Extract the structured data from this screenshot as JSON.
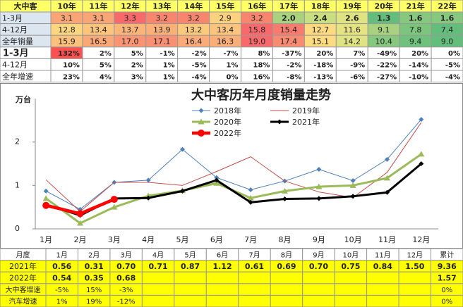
{
  "top_table": {
    "header": [
      "大中客",
      "10年",
      "11年",
      "12年",
      "13年",
      "14年",
      "15年",
      "16年",
      "17年",
      "18年",
      "19年",
      "20年",
      "21年",
      "22年"
    ],
    "rows": [
      {
        "label": "1-3月",
        "cells": [
          "3.1",
          "3.1",
          "3.3",
          "3.2",
          "3.2",
          "2.9",
          "3.2",
          "2.0",
          "2.4",
          "2.6",
          "1.3",
          "1.6",
          "1.6"
        ],
        "colors": [
          "#f9a576",
          "#f9a576",
          "#f8696b",
          "#f8866f",
          "#f8866f",
          "#fcd17f",
          "#f8866f",
          "#a9d27f",
          "#c9dd81",
          "#dfe382",
          "#63be7b",
          "#86c97e",
          "#86c97e"
        ]
      },
      {
        "label": "4-12月",
        "cells": [
          "12.8",
          "13.4",
          "13.7",
          "13.9",
          "13.2",
          "13.4",
          "15.8",
          "15.4",
          "12.7",
          "11.6",
          "9.1",
          "7.8",
          "7.4"
        ],
        "colors": [
          "#fdd780",
          "#fcc47c",
          "#fbb579",
          "#fbb078",
          "#fcca7d",
          "#fcc47c",
          "#f8696b",
          "#f97b6e",
          "#fedb81",
          "#e6e482",
          "#a8d27f",
          "#7bc57d",
          "#63be7b"
        ]
      },
      {
        "label": "全年销量",
        "cells": [
          "15.9",
          "16.5",
          "17.0",
          "17.1",
          "16.4",
          "16.3",
          "19.0",
          "17.4",
          "15.1",
          "14.2",
          "10.4",
          "9.4",
          "9.0"
        ],
        "colors": [
          "#fbc07c",
          "#fba877",
          "#fa9473",
          "#fa9073",
          "#fbab77",
          "#fbaf78",
          "#f8696b",
          "#fa8a72",
          "#fddb81",
          "#e0e382",
          "#86c97e",
          "#6fc27c",
          "#63be7b"
        ]
      },
      {
        "label": "1-3月",
        "cells": [
          "132%",
          "2%",
          "5%",
          "-1%",
          "-2%",
          "-7%",
          "8%",
          "-37%",
          "20%",
          "7%",
          "-49%",
          "20%",
          "0%"
        ],
        "colors": [
          "#ff5050",
          null,
          null,
          null,
          null,
          null,
          null,
          null,
          null,
          null,
          null,
          null,
          null
        ]
      },
      {
        "label": "4-12月",
        "cells": [
          "10%",
          "5%",
          "2%",
          "1%",
          "-5%",
          "1%",
          "18%",
          "-2%",
          "-18%",
          "-9%",
          "-22%",
          "-14%",
          "-5%"
        ]
      },
      {
        "label": "全年增速",
        "cells": [
          "23%",
          "4%",
          "3%",
          "1%",
          "-4%",
          "0%",
          "16%",
          "-8%",
          "-13%",
          "-6%",
          "-27%",
          "-10%",
          "-4%"
        ]
      }
    ]
  },
  "chart_data": {
    "type": "line",
    "title": "大中客历年月度销量走势",
    "y_label": "万台",
    "categories": [
      "1月",
      "2月",
      "3月",
      "4月",
      "5月",
      "6月",
      "7月",
      "8月",
      "9月",
      "10月",
      "11月",
      "12月"
    ],
    "ylim": [
      0,
      3
    ],
    "yticks": [
      0,
      1,
      2
    ],
    "grid": false,
    "series": [
      {
        "name": "2018年",
        "color": "#4f81bd",
        "style": "thin",
        "marker": "diamond",
        "values": [
          0.87,
          0.45,
          1.07,
          1.12,
          1.83,
          1.18,
          0.9,
          1.1,
          1.37,
          1.11,
          1.6,
          2.52
        ]
      },
      {
        "name": "2019年",
        "color": "#c0504d",
        "style": "thin",
        "marker": "none",
        "values": [
          1.13,
          0.4,
          1.07,
          1.07,
          1.0,
          1.32,
          1.66,
          1.1,
          0.85,
          0.72,
          1.3,
          2.45
        ]
      },
      {
        "name": "2020年",
        "color": "#9bbb59",
        "style": "thick",
        "marker": "triangle",
        "values": [
          0.7,
          0.13,
          0.5,
          0.76,
          0.88,
          1.05,
          0.71,
          0.87,
          0.97,
          1.0,
          1.17,
          1.72
        ]
      },
      {
        "name": "2021年",
        "color": "#000000",
        "style": "thick",
        "marker": "diamond",
        "values": [
          0.56,
          0.31,
          0.7,
          0.71,
          0.87,
          1.12,
          0.61,
          0.69,
          0.7,
          0.75,
          0.84,
          1.5
        ]
      },
      {
        "name": "2022年",
        "color": "#ff0000",
        "style": "thicker",
        "marker": "circle",
        "values": [
          0.54,
          0.35,
          0.68,
          null,
          null,
          null,
          null,
          null,
          null,
          null,
          null,
          null
        ]
      }
    ]
  },
  "bottom_table": {
    "header": [
      "月度",
      "1月",
      "2月",
      "3月",
      "4月",
      "5月",
      "6月",
      "7月",
      "8月",
      "9月",
      "10月",
      "11月",
      "12月",
      "累计"
    ],
    "rows": [
      [
        "2021年",
        "0.56",
        "0.31",
        "0.70",
        "0.71",
        "0.87",
        "1.12",
        "0.61",
        "0.69",
        "0.70",
        "0.75",
        "0.84",
        "1.50",
        "9.36"
      ],
      [
        "2022年",
        "0.54",
        "0.35",
        "0.68",
        null,
        null,
        null,
        null,
        null,
        null,
        null,
        null,
        null,
        "1.57"
      ],
      [
        "大中客增速",
        "-5%",
        "15%",
        "-3%",
        null,
        null,
        null,
        null,
        null,
        null,
        null,
        null,
        null,
        "0%"
      ],
      [
        "汽车增速",
        "1%",
        "19%",
        "-12%",
        null,
        null,
        null,
        null,
        null,
        null,
        null,
        null,
        null,
        "0%"
      ]
    ]
  }
}
